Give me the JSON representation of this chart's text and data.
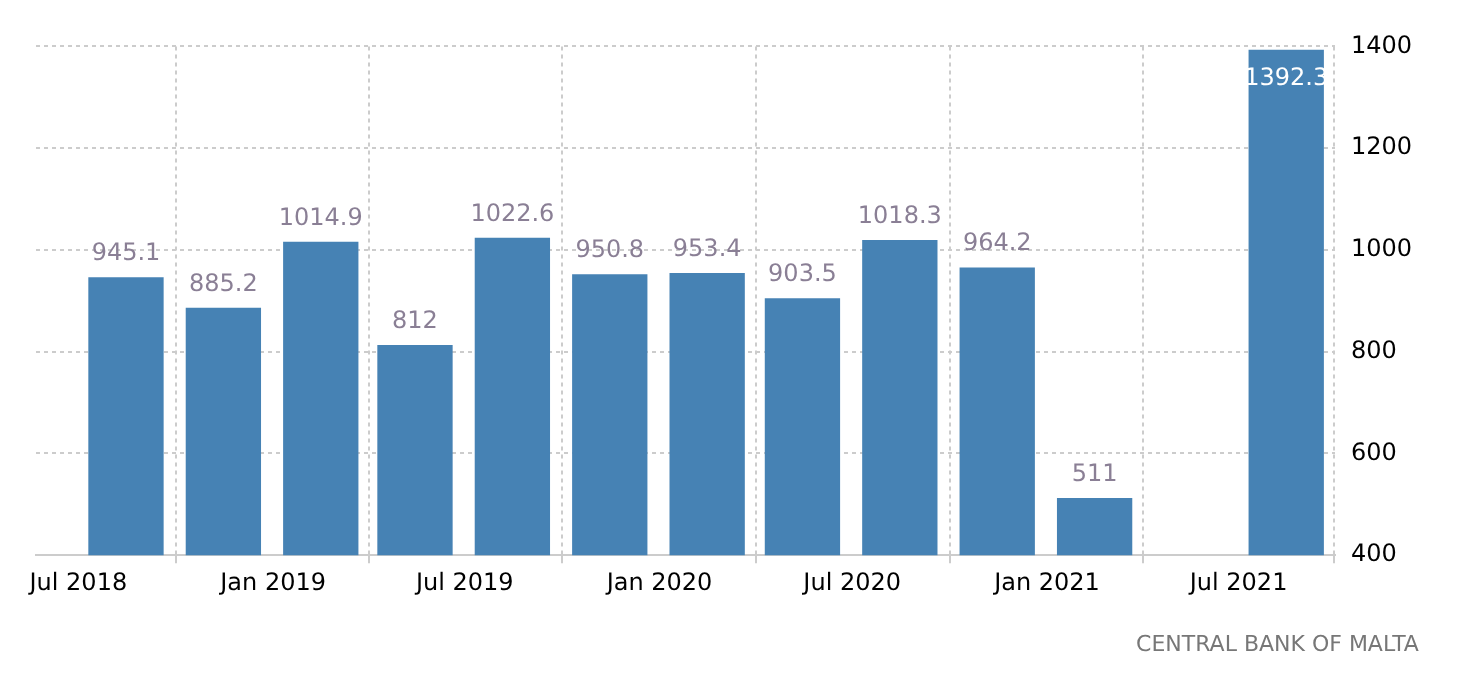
{
  "chart_data": {
    "type": "bar",
    "x": [
      "2018-08-15",
      "2018-11-15",
      "2019-02-15",
      "2019-05-15",
      "2019-08-15",
      "2019-11-15",
      "2020-02-15",
      "2020-05-15",
      "2020-08-15",
      "2020-11-15",
      "2021-02-15",
      "2021-08-15"
    ],
    "values": [
      945.1,
      885.2,
      1014.9,
      812,
      1022.6,
      950.8,
      953.4,
      903.5,
      1018.3,
      964.2,
      511,
      1392.3
    ],
    "color": "#4682b4",
    "xlim": [
      "2018-05-22",
      "2021-09-30"
    ],
    "xticks": [
      {
        "value": "2018-07-01",
        "label": "Jul 2018"
      },
      {
        "value": "2019-01-01",
        "label": "Jan 2019"
      },
      {
        "value": "2019-07-01",
        "label": "Jul 2019"
      },
      {
        "value": "2020-01-01",
        "label": "Jan 2020"
      },
      {
        "value": "2020-07-01",
        "label": "Jul 2020"
      },
      {
        "value": "2021-01-01",
        "label": "Jan 2021"
      },
      {
        "value": "2021-07-01",
        "label": "Jul 2021"
      }
    ],
    "ylim": [
      400,
      1400
    ],
    "yticks": [
      400,
      600,
      800,
      1000,
      1200,
      1400
    ],
    "grid": true,
    "data_labels": true,
    "annotations": [
      "CENTRAL BANK OF MALTA"
    ]
  }
}
